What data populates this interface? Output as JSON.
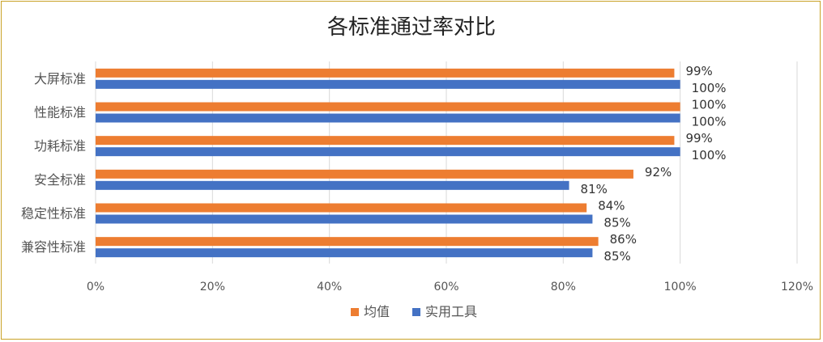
{
  "chart_data": {
    "type": "bar",
    "orientation": "horizontal",
    "title": "各标准通过率对比",
    "categories": [
      "大屏标准",
      "性能标准",
      "功耗标准",
      "安全标准",
      "稳定性标准",
      "兼容性标准"
    ],
    "series": [
      {
        "name": "均值",
        "color": "#ed7d31",
        "values": [
          99,
          100,
          99,
          92,
          84,
          86
        ],
        "labels": [
          "99%",
          "100%",
          "99%",
          "92%",
          "84%",
          "86%"
        ]
      },
      {
        "name": "实用工具",
        "color": "#4472c4",
        "values": [
          100,
          100,
          100,
          81,
          85,
          85
        ],
        "labels": [
          "100%",
          "100%",
          "100%",
          "81%",
          "85%",
          "85%"
        ]
      }
    ],
    "xlim": [
      0,
      120
    ],
    "xticks": [
      0,
      20,
      40,
      60,
      80,
      100,
      120
    ],
    "xtick_labels": [
      "0%",
      "20%",
      "40%",
      "60%",
      "80%",
      "100%",
      "120%"
    ],
    "grid": "vertical",
    "legend": "bottom"
  }
}
